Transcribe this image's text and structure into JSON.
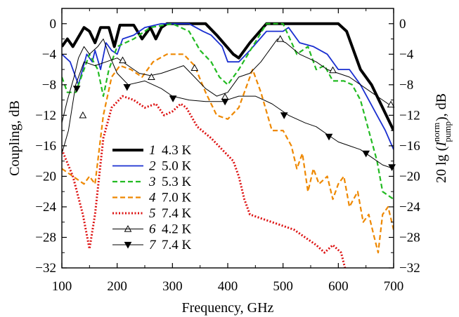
{
  "chart_data": {
    "type": "line",
    "xlabel": "Frequency, GHz",
    "ylabel_left": "Coupling, dB",
    "ylabel_right_prefix": "20 lg (",
    "ylabel_right_I": "I",
    "ylabel_right_sup": "norm",
    "ylabel_right_sub": "pump",
    "ylabel_right_suffix": "), dB",
    "xlim": [
      100,
      700
    ],
    "ylim": [
      -32,
      2
    ],
    "x_ticks": [
      "100",
      "200",
      "300",
      "400",
      "500",
      "600",
      "700"
    ],
    "y_ticks_left": [
      "0",
      "−4",
      "−8",
      "−12",
      "−16",
      "−20",
      "−24",
      "−28",
      "−32"
    ],
    "y_ticks_right": [
      "0",
      "−4",
      "−8",
      "−12",
      "−16",
      "−20",
      "−24",
      "−28",
      "−32"
    ],
    "legend_position": "lower-left",
    "series": [
      {
        "num": "1",
        "name": "4.3 K",
        "color": "#000000",
        "style": "solid-thick",
        "points": [
          [
            100,
            -3
          ],
          [
            110,
            -2
          ],
          [
            120,
            -3
          ],
          [
            140,
            -0.5
          ],
          [
            150,
            -1
          ],
          [
            160,
            -2.5
          ],
          [
            170,
            -0.5
          ],
          [
            185,
            -0.5
          ],
          [
            195,
            -3
          ],
          [
            205,
            -0.2
          ],
          [
            230,
            -0.2
          ],
          [
            245,
            -2
          ],
          [
            260,
            -0.5
          ],
          [
            270,
            -2
          ],
          [
            280,
            -0.5
          ],
          [
            290,
            0
          ],
          [
            360,
            0
          ],
          [
            380,
            -1.5
          ],
          [
            410,
            -4
          ],
          [
            420,
            -4.5
          ],
          [
            440,
            -2.5
          ],
          [
            470,
            0
          ],
          [
            600,
            0
          ],
          [
            615,
            -1
          ],
          [
            625,
            -3
          ],
          [
            640,
            -6
          ],
          [
            660,
            -8
          ],
          [
            680,
            -11
          ],
          [
            700,
            -14
          ]
        ]
      },
      {
        "num": "2",
        "name": "5.0 K",
        "color": "#1a2fd0",
        "style": "solid",
        "points": [
          [
            100,
            -4
          ],
          [
            115,
            -5
          ],
          [
            130,
            -8
          ],
          [
            145,
            -4
          ],
          [
            155,
            -5
          ],
          [
            160,
            -3.5
          ],
          [
            170,
            -6
          ],
          [
            180,
            -2.5
          ],
          [
            190,
            -3.5
          ],
          [
            200,
            -4
          ],
          [
            210,
            -2
          ],
          [
            230,
            -1.5
          ],
          [
            250,
            -0.5
          ],
          [
            280,
            0
          ],
          [
            330,
            0
          ],
          [
            355,
            -1
          ],
          [
            370,
            -1.5
          ],
          [
            390,
            -3
          ],
          [
            400,
            -5
          ],
          [
            420,
            -5
          ],
          [
            440,
            -3.5
          ],
          [
            470,
            -1
          ],
          [
            500,
            -1
          ],
          [
            510,
            -0.5
          ],
          [
            530,
            -2.5
          ],
          [
            555,
            -3
          ],
          [
            580,
            -4
          ],
          [
            600,
            -6
          ],
          [
            620,
            -6
          ],
          [
            640,
            -8
          ],
          [
            655,
            -10
          ],
          [
            670,
            -12
          ],
          [
            685,
            -14
          ],
          [
            700,
            -16.5
          ]
        ]
      },
      {
        "num": "3",
        "name": "5.3 K",
        "color": "#22bb22",
        "style": "dashed",
        "points": [
          [
            100,
            -7
          ],
          [
            110,
            -9
          ],
          [
            125,
            -9
          ],
          [
            140,
            -6
          ],
          [
            150,
            -4
          ],
          [
            165,
            -6
          ],
          [
            175,
            -9.5
          ],
          [
            185,
            -6
          ],
          [
            200,
            -3
          ],
          [
            230,
            -2
          ],
          [
            260,
            -0.5
          ],
          [
            300,
            0
          ],
          [
            330,
            -1
          ],
          [
            350,
            -3.5
          ],
          [
            370,
            -5
          ],
          [
            385,
            -7
          ],
          [
            400,
            -8
          ],
          [
            420,
            -6
          ],
          [
            445,
            -3
          ],
          [
            470,
            0
          ],
          [
            500,
            0
          ],
          [
            525,
            -4
          ],
          [
            545,
            -3
          ],
          [
            560,
            -6
          ],
          [
            575,
            -5.5
          ],
          [
            590,
            -7.5
          ],
          [
            610,
            -7.5
          ],
          [
            625,
            -8
          ],
          [
            640,
            -10
          ],
          [
            655,
            -14
          ],
          [
            670,
            -18
          ],
          [
            680,
            -22
          ],
          [
            690,
            -22.5
          ],
          [
            700,
            -23
          ]
        ]
      },
      {
        "num": "4",
        "name": "7.0 K",
        "color": "#ee8800",
        "style": "dashed",
        "points": [
          [
            100,
            -19
          ],
          [
            120,
            -20
          ],
          [
            140,
            -21
          ],
          [
            150,
            -20
          ],
          [
            160,
            -21
          ],
          [
            175,
            -12
          ],
          [
            190,
            -7
          ],
          [
            205,
            -5.5
          ],
          [
            225,
            -6
          ],
          [
            245,
            -7
          ],
          [
            265,
            -5
          ],
          [
            290,
            -4
          ],
          [
            320,
            -4
          ],
          [
            340,
            -5.5
          ],
          [
            360,
            -9
          ],
          [
            380,
            -12
          ],
          [
            400,
            -12.5
          ],
          [
            420,
            -11
          ],
          [
            445,
            -6
          ],
          [
            460,
            -9
          ],
          [
            480,
            -14
          ],
          [
            500,
            -14
          ],
          [
            515,
            -16
          ],
          [
            525,
            -19
          ],
          [
            535,
            -17
          ],
          [
            545,
            -22
          ],
          [
            555,
            -19
          ],
          [
            565,
            -21
          ],
          [
            580,
            -20
          ],
          [
            590,
            -23
          ],
          [
            600,
            -21
          ],
          [
            610,
            -20
          ],
          [
            620,
            -24
          ],
          [
            635,
            -22
          ],
          [
            645,
            -26
          ],
          [
            655,
            -25
          ],
          [
            665,
            -28
          ],
          [
            672,
            -30
          ],
          [
            680,
            -25
          ],
          [
            690,
            -24
          ],
          [
            700,
            -27
          ]
        ]
      },
      {
        "num": "5",
        "name": "7.4 K",
        "color": "#dd1111",
        "style": "dotted",
        "points": [
          [
            100,
            -16.5
          ],
          [
            120,
            -20
          ],
          [
            138,
            -25
          ],
          [
            150,
            -29.5
          ],
          [
            160,
            -25
          ],
          [
            175,
            -15
          ],
          [
            190,
            -11
          ],
          [
            210,
            -9.5
          ],
          [
            230,
            -10
          ],
          [
            250,
            -11
          ],
          [
            270,
            -10.5
          ],
          [
            285,
            -12
          ],
          [
            300,
            -11.5
          ],
          [
            315,
            -10.5
          ],
          [
            325,
            -11
          ],
          [
            345,
            -13.5
          ],
          [
            370,
            -15
          ],
          [
            390,
            -16.5
          ],
          [
            410,
            -18
          ],
          [
            420,
            -20
          ],
          [
            430,
            -23
          ],
          [
            440,
            -25
          ],
          [
            460,
            -25.5
          ],
          [
            480,
            -26
          ],
          [
            500,
            -26.5
          ],
          [
            520,
            -27
          ],
          [
            540,
            -28
          ],
          [
            560,
            -29
          ],
          [
            575,
            -30
          ],
          [
            590,
            -29
          ],
          [
            605,
            -30
          ],
          [
            612,
            -32
          ]
        ]
      },
      {
        "num": "6",
        "name": "4.2 K",
        "color": "#000000",
        "style": "solid-thin",
        "marker": "triangle-up",
        "points": [
          [
            100,
            -17
          ],
          [
            112,
            -14
          ],
          [
            125,
            -8
          ],
          [
            140,
            -5
          ],
          [
            160,
            -5.5
          ],
          [
            180,
            -5
          ],
          [
            200,
            -4.5
          ],
          [
            220,
            -5.5
          ],
          [
            240,
            -6.5
          ],
          [
            260,
            -6.8
          ],
          [
            280,
            -6.5
          ],
          [
            300,
            -6
          ],
          [
            320,
            -5.5
          ],
          [
            340,
            -7
          ],
          [
            360,
            -8.5
          ],
          [
            380,
            -9.5
          ],
          [
            400,
            -9
          ],
          [
            420,
            -7
          ],
          [
            440,
            -6.5
          ],
          [
            460,
            -5
          ],
          [
            480,
            -3
          ],
          [
            490,
            -2
          ],
          [
            505,
            -2.5
          ],
          [
            530,
            -4
          ],
          [
            560,
            -5
          ],
          [
            580,
            -6
          ],
          [
            600,
            -6.5
          ],
          [
            620,
            -7
          ],
          [
            640,
            -8
          ],
          [
            660,
            -9
          ],
          [
            680,
            -10
          ],
          [
            700,
            -11
          ]
        ]
      },
      {
        "num": "7",
        "name": "7.4 K",
        "color": "#000000",
        "style": "solid-thin",
        "marker": "triangle-down",
        "points": [
          [
            100,
            -13
          ],
          [
            110,
            -10
          ],
          [
            122,
            -7
          ],
          [
            130,
            -4.5
          ],
          [
            140,
            -3
          ],
          [
            150,
            -4
          ],
          [
            165,
            -3
          ],
          [
            175,
            -2
          ],
          [
            185,
            -4
          ],
          [
            200,
            -6.5
          ],
          [
            220,
            -8
          ],
          [
            250,
            -7.5
          ],
          [
            280,
            -8.5
          ],
          [
            300,
            -9.5
          ],
          [
            330,
            -10
          ],
          [
            360,
            -10.2
          ],
          [
            390,
            -10.2
          ],
          [
            420,
            -9.5
          ],
          [
            450,
            -9.5
          ],
          [
            480,
            -10.5
          ],
          [
            510,
            -12
          ],
          [
            540,
            -13
          ],
          [
            560,
            -13.5
          ],
          [
            580,
            -14.5
          ],
          [
            600,
            -15.5
          ],
          [
            620,
            -16
          ],
          [
            640,
            -16.5
          ],
          [
            660,
            -17.5
          ],
          [
            680,
            -18.5
          ],
          [
            700,
            -19
          ]
        ]
      }
    ],
    "markers": {
      "s6": [
        [
          138,
          -12
        ],
        [
          210,
          -4.8
        ],
        [
          262,
          -7
        ],
        [
          340,
          -5.8
        ],
        [
          395,
          -9.6
        ],
        [
          495,
          -2
        ],
        [
          590,
          -6.1
        ],
        [
          695,
          -10.6
        ]
      ],
      "s7": [
        [
          127,
          -8.5
        ],
        [
          218,
          -8.3
        ],
        [
          301,
          -9.8
        ],
        [
          395,
          -10.2
        ],
        [
          502,
          -12
        ],
        [
          583,
          -14.8
        ],
        [
          650,
          -17
        ],
        [
          697,
          -18.8
        ]
      ]
    }
  }
}
